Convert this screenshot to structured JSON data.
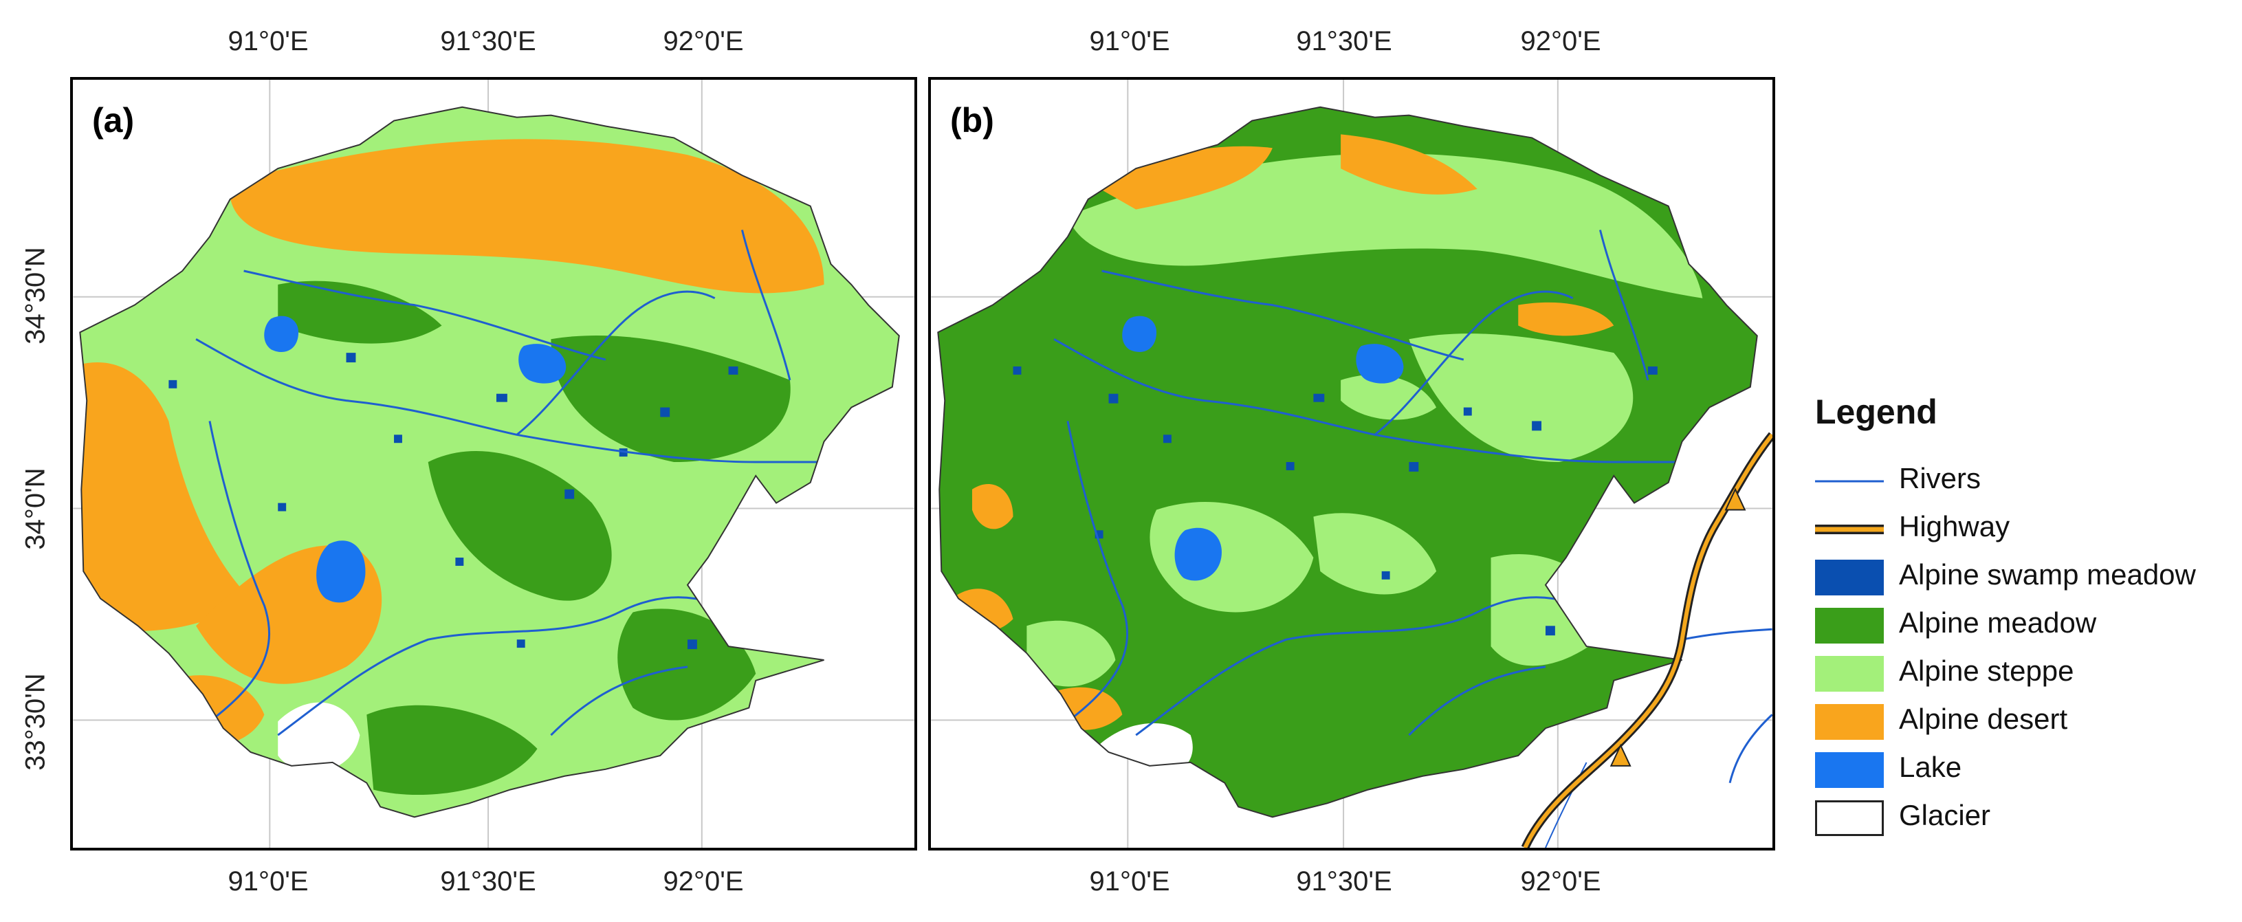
{
  "panels": [
    {
      "id": "a",
      "label": "(a)"
    },
    {
      "id": "b",
      "label": "(b)"
    }
  ],
  "ticks": {
    "lon_top": [
      "91°0'E",
      "91°30'E",
      "92°0'E"
    ],
    "lon_bottom": [
      "91°0'E",
      "91°30'E",
      "92°0'E"
    ],
    "lat_left": [
      "34°30'N",
      "34°0'N",
      "33°30'N"
    ]
  },
  "legend": {
    "title": "Legend",
    "items": [
      {
        "label": "Rivers",
        "kind": "line",
        "color": "#1f5fd0"
      },
      {
        "label": "Highway",
        "kind": "highway",
        "color": "#f4a71c"
      },
      {
        "label": "Alpine swamp meadow",
        "kind": "fill",
        "color": "#0a4fb0"
      },
      {
        "label": "Alpine meadow",
        "kind": "fill",
        "color": "#3a9e1a"
      },
      {
        "label": "Alpine steppe",
        "kind": "fill",
        "color": "#a3f07a"
      },
      {
        "label": "Alpine desert",
        "kind": "fill",
        "color": "#f9a51d"
      },
      {
        "label": "Lake",
        "kind": "fill",
        "color": "#1976f0"
      },
      {
        "label": "Glacier",
        "kind": "outline",
        "color": "#ffffff"
      }
    ]
  },
  "colors": {
    "swamp": "#0a4fb0",
    "meadow": "#3a9e1a",
    "steppe": "#a3f07a",
    "desert": "#f9a51d",
    "lake": "#1976f0",
    "river": "#1f5fd0",
    "highway": "#f4a71c",
    "grid": "#c8c8c8"
  }
}
